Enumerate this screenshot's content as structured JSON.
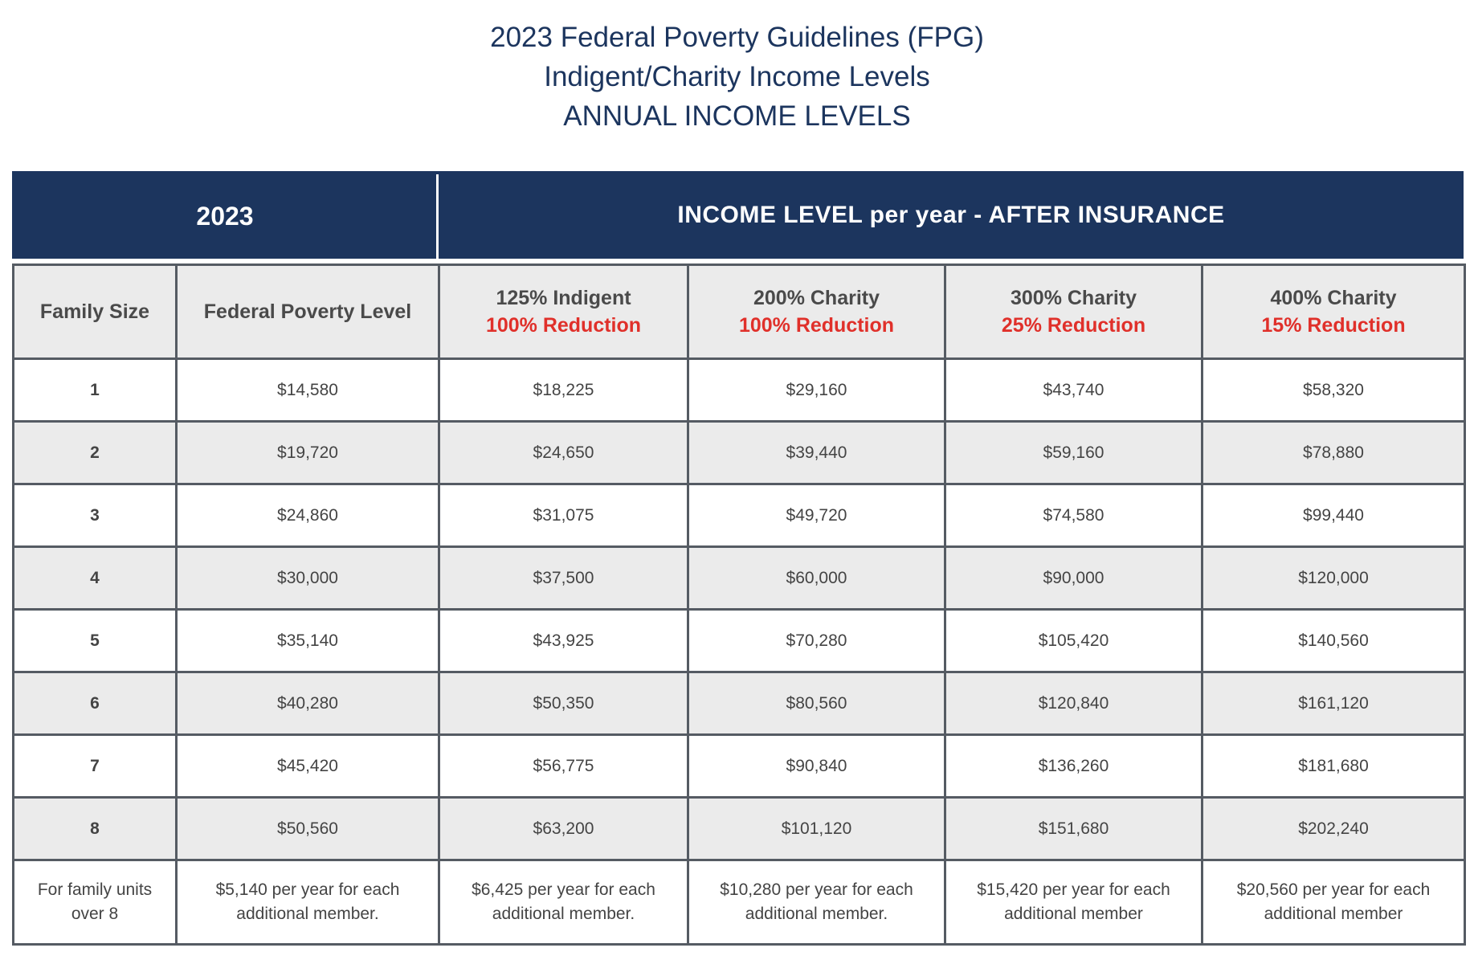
{
  "title": {
    "line1": "2023 Federal Poverty Guidelines (FPG)",
    "line2": "Indigent/Charity Income Levels",
    "line3": "ANNUAL INCOME LEVELS"
  },
  "banner": {
    "year": "2023",
    "heading": "INCOME LEVEL per year - AFTER INSURANCE"
  },
  "table": {
    "headers": {
      "family_size": "Family Size",
      "fpl": "Federal Poverty Level",
      "tiers": [
        {
          "label": "125% Indigent",
          "reduction": "100% Reduction"
        },
        {
          "label": "200% Charity",
          "reduction": "100% Reduction"
        },
        {
          "label": "300% Charity",
          "reduction": "25% Reduction"
        },
        {
          "label": "400% Charity",
          "reduction": "15% Reduction"
        }
      ]
    },
    "rows": [
      {
        "size": "1",
        "fpl": "$14,580",
        "t125": "$18,225",
        "t200": "$29,160",
        "t300": "$43,740",
        "t400": "$58,320"
      },
      {
        "size": "2",
        "fpl": "$19,720",
        "t125": "$24,650",
        "t200": "$39,440",
        "t300": "$59,160",
        "t400": "$78,880"
      },
      {
        "size": "3",
        "fpl": "$24,860",
        "t125": "$31,075",
        "t200": "$49,720",
        "t300": "$74,580",
        "t400": "$99,440"
      },
      {
        "size": "4",
        "fpl": "$30,000",
        "t125": "$37,500",
        "t200": "$60,000",
        "t300": "$90,000",
        "t400": "$120,000"
      },
      {
        "size": "5",
        "fpl": "$35,140",
        "t125": "$43,925",
        "t200": "$70,280",
        "t300": "$105,420",
        "t400": "$140,560"
      },
      {
        "size": "6",
        "fpl": "$40,280",
        "t125": "$50,350",
        "t200": "$80,560",
        "t300": "$120,840",
        "t400": "$161,120"
      },
      {
        "size": "7",
        "fpl": "$45,420",
        "t125": "$56,775",
        "t200": "$90,840",
        "t300": "$136,260",
        "t400": "$181,680"
      },
      {
        "size": "8",
        "fpl": "$50,560",
        "t125": "$63,200",
        "t200": "$101,120",
        "t300": "$151,680",
        "t400": "$202,240"
      }
    ],
    "footer": {
      "size": "For family units over 8",
      "fpl": "$5,140 per year for each additional member.",
      "t125": "$6,425 per year for each additional member.",
      "t200": "$10,280 per year for each additional member.",
      "t300": "$15,420 per year for each additional member",
      "t400": "$20,560 per year for each additional member"
    }
  },
  "colors": {
    "navy": "#1c355e",
    "reduction_red": "#e0302a",
    "row_gray": "#ebebeb",
    "border": "#555b63"
  }
}
